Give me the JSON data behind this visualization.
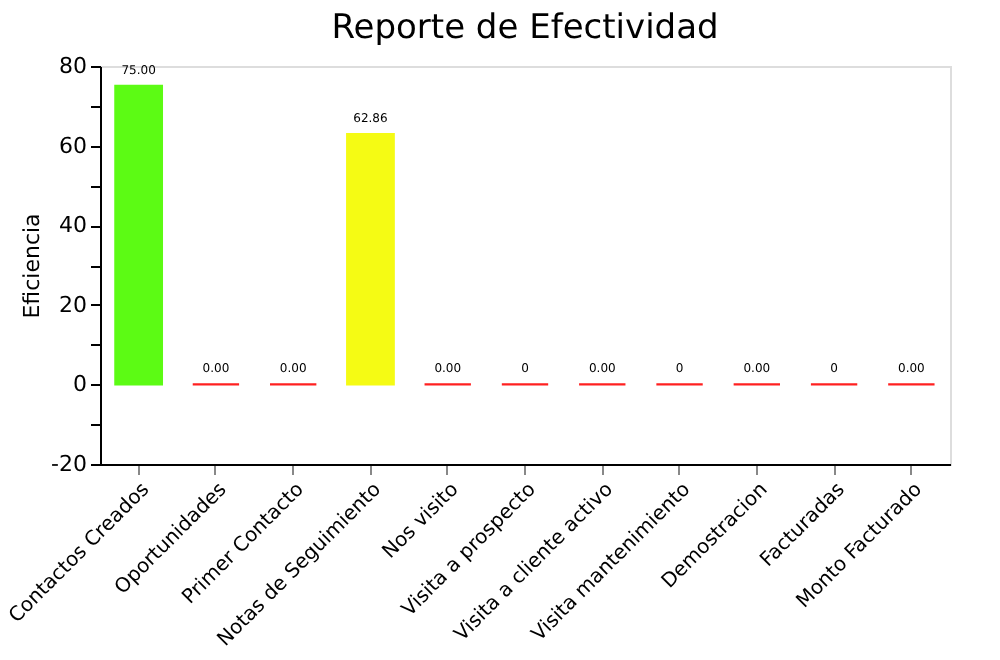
{
  "chart_data": {
    "type": "bar",
    "title": "Reporte de Efectividad",
    "ylabel": "Eficiencia",
    "categories": [
      "Contactos Creados",
      "Oportunidades",
      "Primer Contacto",
      "Notas de Seguimiento",
      "Nos visito",
      "Visita a prospecto",
      "Visita a cliente activo",
      "Visita mantenimiento",
      "Demostracion",
      "Facturadas",
      "Monto Facturado"
    ],
    "values": [
      75,
      0,
      0,
      62.86,
      0,
      0,
      0,
      0,
      0,
      0,
      0
    ],
    "value_labels": [
      "75.00",
      "0.00",
      "0.00",
      "62.86",
      "0.00",
      "0",
      "0.00",
      "0",
      "0.00",
      "0",
      "0.00"
    ],
    "colors": [
      "#5cfb14",
      "#ff2020",
      "#ff2020",
      "#f5fb14",
      "#ff2020",
      "#ff2020",
      "#ff2020",
      "#ff2020",
      "#ff2020",
      "#ff2020",
      "#ff2020"
    ],
    "ylim": [
      -20,
      80
    ],
    "yticks": [
      -20,
      {
        "value": -10,
        "label": null
      },
      0,
      {
        "value": 10,
        "label": null
      },
      20,
      {
        "value": 30,
        "label": null
      },
      40,
      {
        "value": 50,
        "label": null
      },
      60,
      {
        "value": 70,
        "label": null
      },
      80
    ],
    "grid": false,
    "legend": false
  }
}
